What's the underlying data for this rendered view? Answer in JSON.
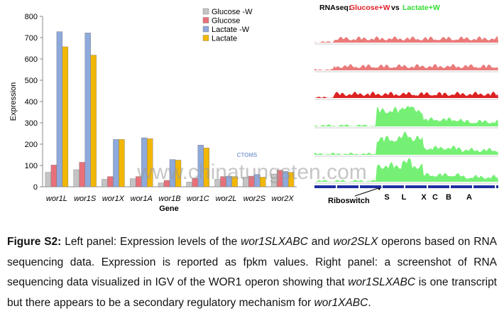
{
  "chart_data": {
    "type": "bar",
    "xlabel": "Gene",
    "ylabel": "Expression",
    "categories": [
      "wor1L",
      "wor1S",
      "wor1X",
      "wor1A",
      "wor1B",
      "wor1C",
      "wor2L",
      "wor2S",
      "wor2X"
    ],
    "series": [
      {
        "name": "Glucose -W",
        "color": "#c4c4c4",
        "values": [
          68,
          80,
          35,
          38,
          18,
          22,
          35,
          45,
          60
        ]
      },
      {
        "name": "Glucose",
        "color": "#e8707a",
        "values": [
          102,
          115,
          48,
          48,
          30,
          40,
          48,
          50,
          78
        ]
      },
      {
        "name": "Lactate -W",
        "color": "#8ea9db",
        "values": [
          728,
          722,
          222,
          230,
          128,
          196,
          50,
          58,
          72
        ]
      },
      {
        "name": "Lactate",
        "color": "#f2b705",
        "values": [
          657,
          618,
          222,
          226,
          125,
          182,
          48,
          45,
          68
        ]
      }
    ],
    "ylim": [
      0,
      800
    ],
    "yticks": [
      0,
      100,
      200,
      300,
      400,
      500,
      600,
      700,
      800
    ],
    "legend": "top-right"
  },
  "igv_panel": {
    "title_prefix": "RNAseq:",
    "title_glucose": "Glucose+W",
    "title_vs": "vs",
    "title_lactate": "Lactate+W",
    "genes": [
      "S",
      "L",
      "X",
      "C",
      "B",
      "A"
    ],
    "riboswitch": "Riboswitch"
  },
  "watermark": {
    "logo": "CTOMS",
    "url": "www.chinatungsten.com"
  },
  "caption": {
    "parts": [
      "Figure S2:",
      " Left panel: Expression levels of the ",
      "wor1SLXABC",
      " and ",
      "wor2SLX",
      " operons based on RNA sequencing data. Expression is reported as fpkm values. Right panel: a screenshot of RNA sequencing data visualized in IGV of the WOR1 operon showing that ",
      "wor1SLXABC",
      " is one transcript but there appears to be a secondary regulatory mechanism for ",
      "wor1XABC",
      "."
    ]
  }
}
